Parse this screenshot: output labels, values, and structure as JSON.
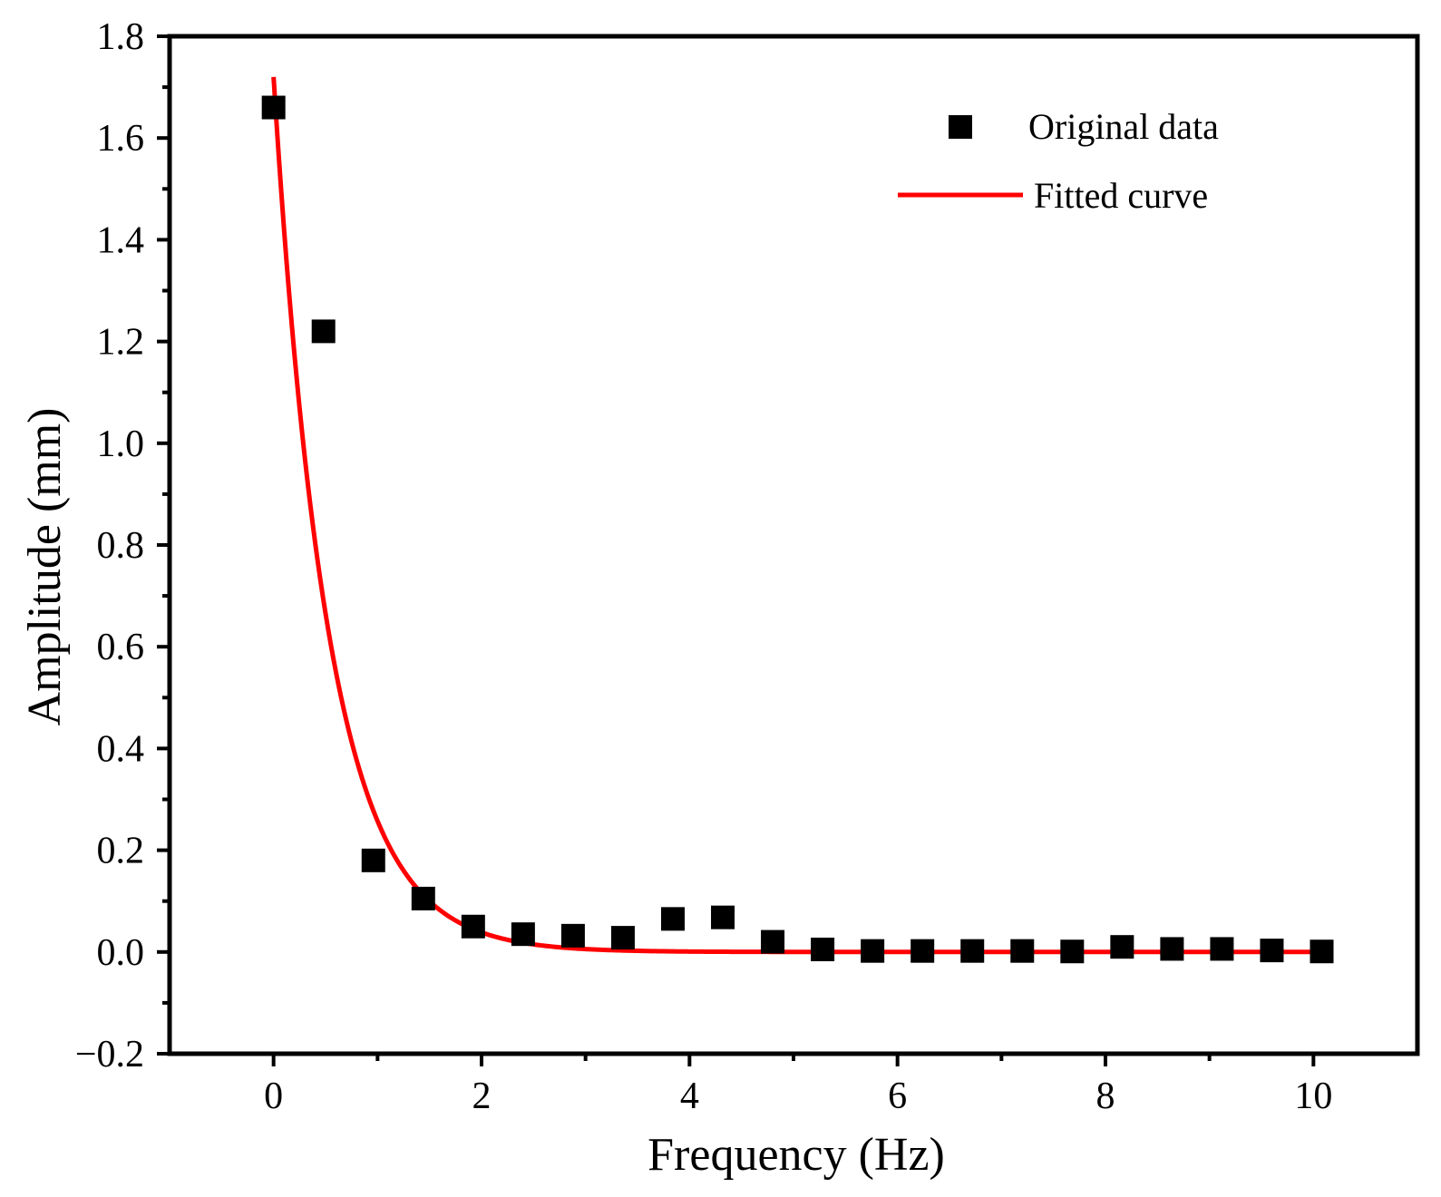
{
  "colors": {
    "axis": "#000000",
    "marker": "#000000",
    "fit_line": "#ff0000",
    "background": "#ffffff"
  },
  "chart_data": {
    "type": "scatter",
    "title": "",
    "xlabel": "Frequency (Hz)",
    "ylabel": "Amplitude (mm)",
    "xlim": [
      -1,
      11
    ],
    "ylim": [
      -0.2,
      1.8
    ],
    "xticks": [
      0,
      2,
      4,
      6,
      8,
      10
    ],
    "xtick_labels": [
      "0",
      "2",
      "4",
      "6",
      "8",
      "10"
    ],
    "xminor_ticks": [
      1,
      3,
      5,
      7,
      9
    ],
    "yticks": [
      -0.2,
      0.0,
      0.2,
      0.4,
      0.6,
      0.8,
      1.0,
      1.2,
      1.4,
      1.6,
      1.8
    ],
    "ytick_labels": [
      "−0.2",
      "0.0",
      "0.2",
      "0.4",
      "0.6",
      "0.8",
      "1.0",
      "1.2",
      "1.4",
      "1.6",
      "1.8"
    ],
    "yminor_ticks": [
      -0.1,
      0.1,
      0.3,
      0.5,
      0.7,
      0.9,
      1.1,
      1.3,
      1.5,
      1.7
    ],
    "grid": false,
    "legend": {
      "position": "top-right",
      "entries": [
        "Original data",
        "Fitted curve"
      ]
    },
    "series": [
      {
        "name": "Original data",
        "kind": "markers",
        "marker": "square",
        "x": [
          0.0,
          0.48,
          0.96,
          1.44,
          1.92,
          2.4,
          2.88,
          3.36,
          3.84,
          4.32,
          4.8,
          5.28,
          5.76,
          6.24,
          6.72,
          7.2,
          7.68,
          8.16,
          8.64,
          9.12,
          9.6,
          10.08
        ],
        "y": [
          1.66,
          1.22,
          0.18,
          0.105,
          0.05,
          0.035,
          0.032,
          0.028,
          0.065,
          0.068,
          0.02,
          0.005,
          0.002,
          0.002,
          0.002,
          0.002,
          0.001,
          0.01,
          0.006,
          0.006,
          0.003,
          0.001
        ]
      },
      {
        "name": "Fitted curve",
        "kind": "line",
        "equation": "y = 1.72 * exp(-1.9 * x)",
        "amplitude": 1.72,
        "decay": 1.9,
        "x_range": [
          0,
          10
        ]
      }
    ]
  }
}
